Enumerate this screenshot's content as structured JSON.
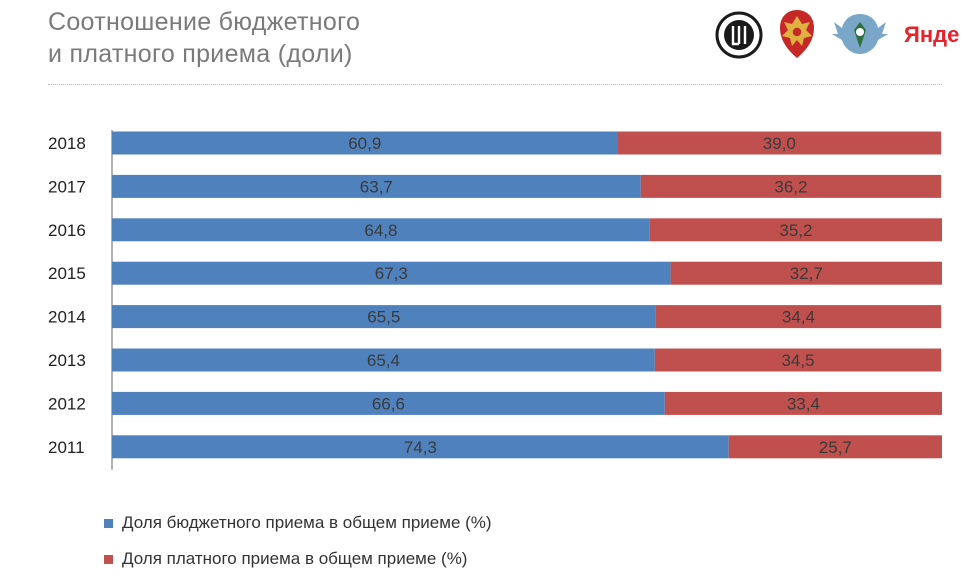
{
  "title": {
    "line1": "Соотношение бюджетного",
    "line2": "и платного приема (доли)"
  },
  "logos": {
    "yandex_text": "Янде"
  },
  "colors": {
    "budget": "#4f81bd",
    "paid": "#c0504d",
    "axis": "#999999",
    "label": "#3a3a3a"
  },
  "chart_data": {
    "type": "bar",
    "orientation": "horizontal",
    "stacked": true,
    "categories": [
      "2018",
      "2017",
      "2016",
      "2015",
      "2014",
      "2013",
      "2012",
      "2011"
    ],
    "series": [
      {
        "name": "Доля бюджетного приема в общем приеме (%)",
        "values": [
          60.9,
          63.7,
          64.8,
          67.3,
          65.5,
          65.4,
          66.6,
          74.3
        ],
        "labels": [
          "60,9",
          "63,7",
          "64,8",
          "67,3",
          "65,5",
          "65,4",
          "66,6",
          "74,3"
        ]
      },
      {
        "name": "Доля платного приема в общем приеме (%)",
        "values": [
          39.0,
          36.2,
          35.2,
          32.7,
          34.4,
          34.5,
          33.4,
          25.7
        ],
        "labels": [
          "39,0",
          "36,2",
          "35,2",
          "32,7",
          "34,4",
          "34,5",
          "33,4",
          "25,7"
        ]
      }
    ],
    "xlim": [
      0,
      100
    ],
    "grid": false,
    "legend_position": "bottom-left"
  }
}
